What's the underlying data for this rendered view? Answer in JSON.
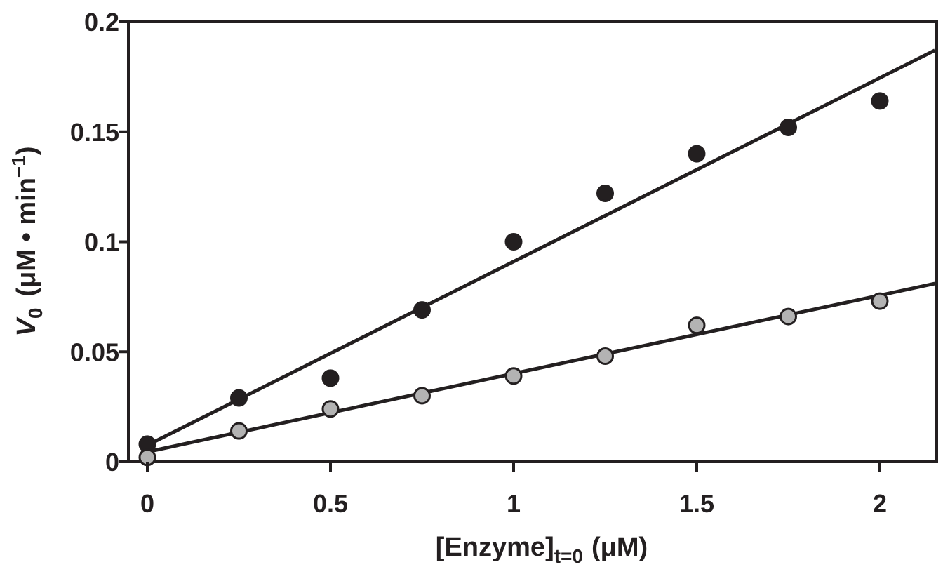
{
  "chart_data": {
    "type": "scatter",
    "title": "",
    "xlabel": {
      "main": "[Enzyme]",
      "subscript": "t=0",
      "unit": "(μM)"
    },
    "ylabel": {
      "symbol": "V",
      "subscript": "0",
      "unit_open": "(μM • min",
      "unit_sup": "−1",
      "unit_close": ")"
    },
    "xlim": [
      0,
      2.15
    ],
    "ylim": [
      0,
      0.2
    ],
    "x_ticks": [
      0,
      0.5,
      1,
      1.5,
      2
    ],
    "x_tick_labels": [
      "0",
      "0.5",
      "1",
      "1.5",
      "2"
    ],
    "y_ticks": [
      0,
      0.05,
      0.1,
      0.15,
      0.2
    ],
    "y_tick_labels": [
      "0",
      "0.05",
      "0.1",
      "0.15",
      "0.2"
    ],
    "grid": false,
    "legend": "none",
    "x": [
      0,
      0.25,
      0.5,
      0.75,
      1,
      1.25,
      1.5,
      1.75,
      2
    ],
    "series": [
      {
        "color": "#231f20",
        "values": [
          0.008,
          0.029,
          0.038,
          0.069,
          0.1,
          0.122,
          0.14,
          0.152,
          0.164
        ],
        "fit_line": {
          "x0": 0,
          "y0": 0.0075,
          "x1": 2.15,
          "y1": 0.187
        }
      },
      {
        "color": "#b3b3b3",
        "values": [
          0.002,
          0.014,
          0.024,
          0.03,
          0.039,
          0.048,
          0.062,
          0.066,
          0.073
        ],
        "fit_line": {
          "x0": 0,
          "y0": 0.0045,
          "x1": 2.15,
          "y1": 0.081
        }
      }
    ]
  }
}
